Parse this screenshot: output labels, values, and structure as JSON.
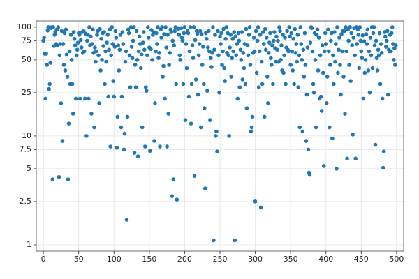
{
  "chart_data": {
    "type": "scatter",
    "color": "#1f77b4",
    "grid": true,
    "yscale": "log",
    "xlim": [
      -10,
      510
    ],
    "xticks": [
      0,
      50,
      100,
      150,
      200,
      250,
      300,
      350,
      400,
      450,
      500
    ],
    "ylim": [
      0.875,
      114
    ],
    "yticks": [
      1,
      2.5,
      5,
      7.5,
      10,
      25,
      50,
      75,
      100
    ],
    "x": [
      0,
      1,
      2,
      3,
      4,
      5,
      6,
      7,
      8,
      9,
      10,
      11,
      12,
      13,
      14,
      15,
      16,
      17,
      18,
      19,
      20,
      21,
      22,
      23,
      24,
      25,
      26,
      27,
      28,
      29,
      30,
      31,
      32,
      33,
      34,
      35,
      36,
      37,
      38,
      39,
      40,
      41,
      42,
      43,
      44,
      45,
      46,
      47,
      48,
      49,
      50,
      51,
      52,
      53,
      54,
      55,
      56,
      57,
      58,
      59,
      60,
      61,
      62,
      63,
      64,
      65,
      66,
      67,
      68,
      69,
      70,
      71,
      72,
      73,
      74,
      75,
      76,
      77,
      78,
      79,
      80,
      81,
      82,
      83,
      84,
      85,
      86,
      87,
      88,
      89,
      90,
      91,
      92,
      93,
      94,
      95,
      96,
      97,
      98,
      99,
      100,
      101,
      102,
      103,
      104,
      105,
      106,
      107,
      108,
      109,
      110,
      111,
      112,
      113,
      114,
      115,
      116,
      117,
      118,
      119,
      120,
      121,
      122,
      123,
      124,
      125,
      126,
      127,
      128,
      129,
      130,
      131,
      132,
      133,
      134,
      135,
      136,
      137,
      138,
      139,
      140,
      141,
      142,
      143,
      144,
      145,
      146,
      147,
      148,
      149,
      150,
      151,
      152,
      153,
      154,
      155,
      156,
      157,
      158,
      159,
      160,
      161,
      162,
      163,
      164,
      165,
      166,
      167,
      168,
      169,
      170,
      171,
      172,
      173,
      174,
      175,
      176,
      177,
      178,
      179,
      180,
      181,
      182,
      183,
      184,
      185,
      186,
      187,
      188,
      189,
      190,
      191,
      192,
      193,
      194,
      195,
      196,
      197,
      198,
      199,
      200,
      201,
      202,
      203,
      204,
      205,
      206,
      207,
      208,
      209,
      210,
      211,
      212,
      213,
      214,
      215,
      216,
      217,
      218,
      219,
      220,
      221,
      222,
      223,
      224,
      225,
      226,
      227,
      228,
      229,
      230,
      231,
      232,
      233,
      234,
      235,
      236,
      237,
      238,
      239,
      240,
      241,
      242,
      243,
      244,
      245,
      246,
      247,
      248,
      249,
      250,
      251,
      252,
      253,
      254,
      255,
      256,
      257,
      258,
      259,
      260,
      261,
      262,
      263,
      264,
      265,
      266,
      267,
      268,
      269,
      270,
      271,
      272,
      273,
      274,
      275,
      276,
      277,
      278,
      279,
      280,
      281,
      282,
      283,
      284,
      285,
      286,
      287,
      288,
      289,
      290,
      291,
      292,
      293,
      294,
      295,
      296,
      297,
      298,
      299,
      300,
      301,
      302,
      303,
      304,
      305,
      306,
      307,
      308,
      309,
      310,
      311,
      312,
      313,
      314,
      315,
      316,
      317,
      318,
      319,
      320,
      321,
      322,
      323,
      324,
      325,
      326,
      327,
      328,
      329,
      330,
      331,
      332,
      333,
      334,
      335,
      336,
      337,
      338,
      339,
      340,
      341,
      342,
      343,
      344,
      345,
      346,
      347,
      348,
      349,
      350,
      351,
      352,
      353,
      354,
      355,
      356,
      357,
      358,
      359,
      360,
      361,
      362,
      363,
      364,
      365,
      366,
      367,
      368,
      369,
      370,
      371,
      372,
      373,
      374,
      375,
      376,
      377,
      378,
      379,
      380,
      381,
      382,
      383,
      384,
      385,
      386,
      387,
      388,
      389,
      390,
      391,
      392,
      393,
      394,
      395,
      396,
      397,
      398,
      399,
      400,
      401,
      402,
      403,
      404,
      405,
      406,
      407,
      408,
      409,
      410,
      411,
      412,
      413,
      414,
      415,
      416,
      417,
      418,
      419,
      420,
      421,
      422,
      423,
      424,
      425,
      426,
      427,
      428,
      429,
      430,
      431,
      432,
      433,
      434,
      435,
      436,
      437,
      438,
      439,
      440,
      441,
      442,
      443,
      444,
      445,
      446,
      447,
      448,
      449,
      450,
      451,
      452,
      453,
      454,
      455,
      456,
      457,
      458,
      459,
      460,
      461,
      462,
      463,
      464,
      465,
      466,
      467,
      468,
      469,
      470,
      471,
      472,
      473,
      474,
      475,
      476,
      477,
      478,
      479,
      480,
      481,
      482,
      483,
      484,
      485,
      486,
      487,
      488,
      489,
      490,
      491,
      492,
      493,
      494,
      495,
      496,
      497,
      498,
      499
    ],
    "values": [
      75,
      80,
      57,
      22,
      57,
      45,
      93,
      100,
      27,
      30,
      47,
      98,
      100,
      4,
      100,
      67,
      85,
      90,
      70,
      95,
      68,
      100,
      4.2,
      55,
      70,
      20,
      92,
      9,
      70,
      45,
      88,
      40,
      95,
      56,
      35,
      4,
      13,
      60,
      30,
      85,
      50,
      30,
      16,
      90,
      78,
      68,
      22,
      55,
      62,
      72,
      88,
      85,
      22,
      76,
      65,
      90,
      58,
      92,
      60,
      22,
      87,
      10,
      75,
      85,
      22,
      100,
      68,
      82,
      16,
      70,
      95,
      58,
      12,
      65,
      48,
      60,
      85,
      92,
      55,
      20,
      96,
      40,
      78,
      50,
      88,
      67,
      90,
      30,
      60,
      48,
      72,
      85,
      23,
      62,
      95,
      8,
      55,
      100,
      70,
      32,
      23,
      66,
      92,
      80,
      7.8,
      15,
      68,
      40,
      62,
      85,
      12,
      23,
      90,
      70,
      7.5,
      10.5,
      48,
      60,
      1.7,
      15,
      95,
      88,
      55,
      28,
      100,
      66,
      52,
      75,
      100,
      7,
      45,
      28,
      92,
      50,
      6.5,
      60,
      82,
      70,
      42,
      56,
      12,
      72,
      90,
      62,
      8,
      28,
      26,
      55,
      100,
      80,
      65,
      7.3,
      63,
      94,
      50,
      85,
      90,
      9,
      20,
      60,
      88,
      70,
      100,
      52,
      58,
      8,
      95,
      80,
      100,
      35,
      44,
      86,
      22,
      100,
      65,
      8,
      85,
      16,
      45,
      58,
      95,
      90,
      2.8,
      75,
      4,
      68,
      92,
      100,
      30,
      2.6,
      98,
      96,
      85,
      55,
      50,
      98,
      80,
      75,
      30,
      88,
      100,
      14,
      70,
      42,
      92,
      88,
      23,
      60,
      100,
      13,
      30,
      68,
      52,
      100,
      4.3,
      76,
      33,
      92,
      87,
      24,
      55,
      70,
      92,
      12,
      86,
      45,
      66,
      30,
      18,
      3.3,
      88,
      78,
      26,
      65,
      92,
      60,
      14,
      52,
      43,
      58,
      100,
      1.1,
      62,
      85,
      10,
      11,
      7.2,
      92,
      55,
      25,
      82,
      70,
      88,
      45,
      60,
      96,
      42,
      32,
      78,
      100,
      58,
      88,
      55,
      10,
      65,
      85,
      35,
      52,
      78,
      60,
      90,
      1.1,
      82,
      55,
      70,
      22,
      88,
      75,
      28,
      62,
      50,
      90,
      33,
      58,
      42,
      70,
      30,
      96,
      18,
      68,
      55,
      85,
      100,
      45,
      11,
      12,
      15,
      58,
      80,
      60,
      2.5,
      92,
      38,
      75,
      100,
      28,
      60,
      85,
      2.2,
      48,
      30,
      90,
      70,
      15,
      96,
      62,
      80,
      35,
      20,
      58,
      72,
      88,
      52,
      45,
      68,
      30,
      75,
      90,
      64,
      48,
      82,
      62,
      75,
      48,
      100,
      92,
      50,
      68,
      40,
      85,
      38,
      55,
      80,
      30,
      65,
      92,
      62,
      60,
      100,
      82,
      45,
      88,
      60,
      40,
      78,
      30,
      96,
      58,
      70,
      48,
      85,
      28,
      55,
      12,
      100,
      70,
      50,
      11,
      62,
      35,
      88,
      45,
      9,
      24,
      65,
      7.5,
      4.6,
      4.4,
      72,
      100,
      98,
      60,
      30,
      25,
      88,
      50,
      12,
      85,
      95,
      40,
      80,
      22,
      55,
      23,
      17,
      68,
      38,
      5.3,
      60,
      88,
      70,
      20,
      35,
      95,
      60,
      12,
      45,
      75,
      88,
      9.5,
      55,
      30,
      90,
      48,
      70,
      5,
      100,
      38,
      62,
      80,
      45,
      24,
      86,
      60,
      92,
      35,
      92,
      16,
      100,
      60,
      6.2,
      95,
      75,
      45,
      100,
      32,
      88,
      68,
      10.3,
      80,
      98,
      55,
      6.2,
      100,
      70,
      95,
      85,
      42,
      100,
      75,
      60,
      52,
      84,
      22,
      74,
      38,
      50,
      86,
      70,
      95,
      40,
      60,
      25,
      80,
      55,
      100,
      42,
      88,
      100,
      68,
      8.3,
      75,
      52,
      40,
      62,
      55,
      88,
      30,
      70,
      58,
      22,
      5.1,
      7.2,
      90,
      82,
      66,
      75,
      92,
      24,
      62,
      60,
      85,
      60,
      88,
      100,
      70,
      50,
      64,
      45,
      68
    ]
  }
}
